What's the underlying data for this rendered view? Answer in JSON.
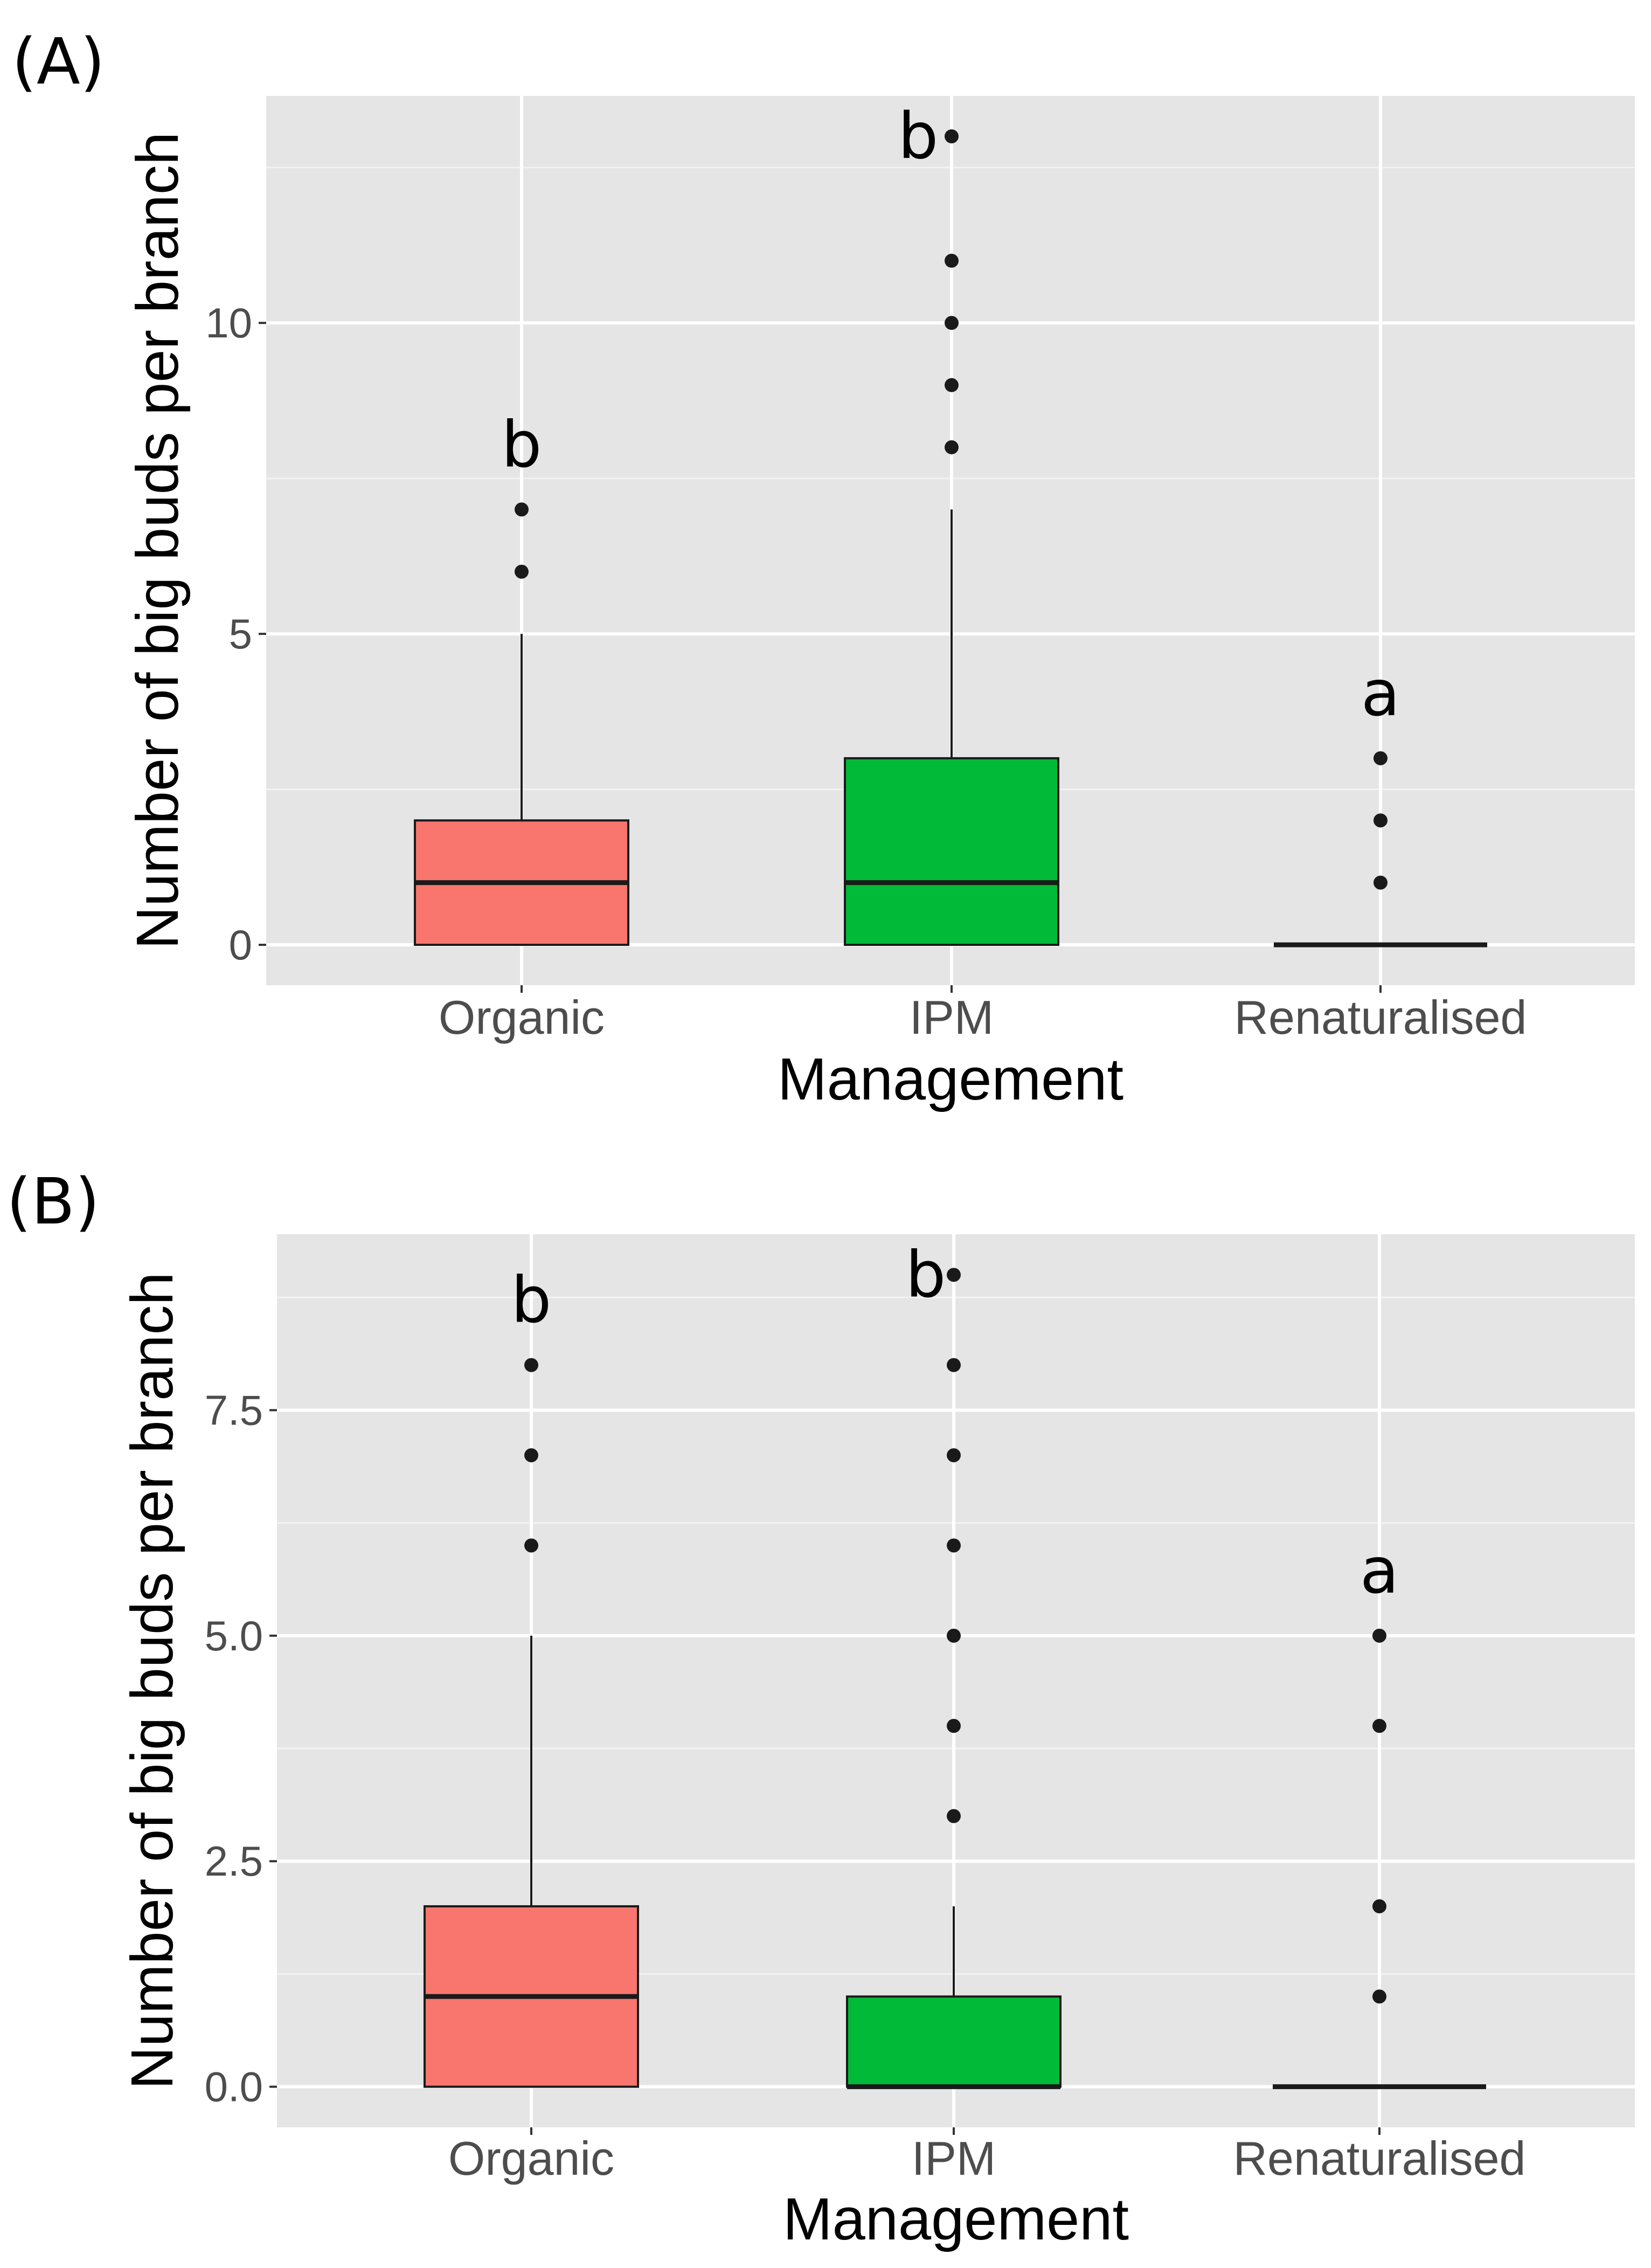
{
  "chart_data": [
    {
      "type": "box",
      "panel_label": "(A)",
      "xlabel": "Management",
      "ylabel": "Number of big buds per branch",
      "categories": [
        "Organic",
        "IPM",
        "Renaturalised"
      ],
      "y_ticks": [
        0,
        5,
        10
      ],
      "y_tick_labels": [
        "0",
        "5",
        "10"
      ],
      "ylim": [
        -0.65,
        13.65
      ],
      "grid": true,
      "boxes": [
        {
          "category": "Organic",
          "q1": 0,
          "median": 1,
          "q3": 2,
          "whisker_low": 0,
          "whisker_high": 5,
          "outliers": [
            6,
            7
          ],
          "color": "#F8766D",
          "letter": "b"
        },
        {
          "category": "IPM",
          "q1": 0,
          "median": 1,
          "q3": 3,
          "whisker_low": 0,
          "whisker_high": 7,
          "outliers": [
            8,
            9,
            10,
            11,
            13
          ],
          "color": "#00BA38",
          "letter": "b"
        },
        {
          "category": "Renaturalised",
          "q1": 0,
          "median": 0,
          "q3": 0,
          "whisker_low": 0,
          "whisker_high": 0,
          "outliers": [
            1,
            2,
            3
          ],
          "color": "#619CFF",
          "letter": "a"
        }
      ]
    },
    {
      "type": "box",
      "panel_label": "(B)",
      "xlabel": "Management",
      "ylabel": "Number of big buds per branch",
      "categories": [
        "Organic",
        "IPM",
        "Renaturalised"
      ],
      "y_ticks": [
        0,
        2.5,
        5,
        7.5
      ],
      "y_tick_labels": [
        "0.0",
        "2.5",
        "5.0",
        "7.5"
      ],
      "ylim": [
        -0.45,
        9.45
      ],
      "grid": true,
      "boxes": [
        {
          "category": "Organic",
          "q1": 0,
          "median": 1,
          "q3": 2,
          "whisker_low": 0,
          "whisker_high": 5,
          "outliers": [
            6,
            7,
            8
          ],
          "color": "#F8766D",
          "letter": "b"
        },
        {
          "category": "IPM",
          "q1": 0,
          "median": 0,
          "q3": 1,
          "whisker_low": 0,
          "whisker_high": 2,
          "outliers": [
            3,
            4,
            5,
            6,
            7,
            8,
            9
          ],
          "color": "#00BA38",
          "letter": "b"
        },
        {
          "category": "Renaturalised",
          "q1": 0,
          "median": 0,
          "q3": 0,
          "whisker_low": 0,
          "whisker_high": 0,
          "outliers": [
            1,
            2,
            4,
            5
          ],
          "color": "#619CFF",
          "letter": "a"
        }
      ]
    }
  ]
}
